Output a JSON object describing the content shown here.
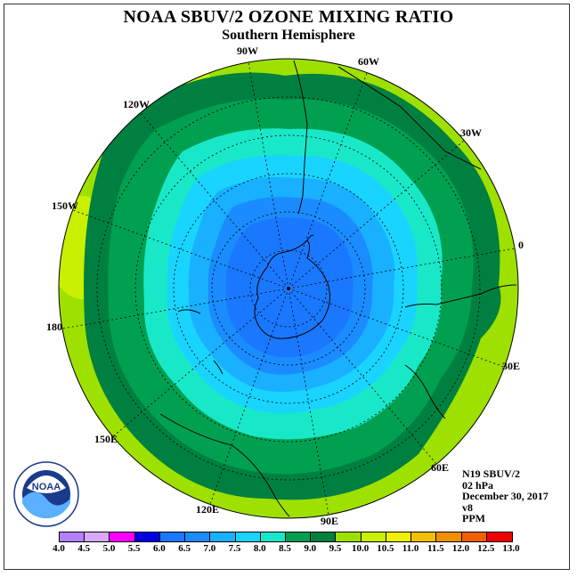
{
  "title": "NOAA SBUV/2 OZONE MIXING RATIO",
  "subtitle": "Southern Hemisphere",
  "longitude_labels": {
    "w90": "90W",
    "w60": "60W",
    "w30": "30W",
    "e0": "0",
    "w120": "120W",
    "w150": "150W",
    "w180": "180",
    "e30": "30E",
    "e60": "60E",
    "e90": "90E",
    "e120": "120E",
    "e150": "150E"
  },
  "info": {
    "satellite": "N19 SBUV/2",
    "level": "02 hPa",
    "date": "December 30, 2017",
    "version": "v8",
    "units": "PPM"
  },
  "logo_text": "NOAA",
  "colorbar": {
    "ticks": [
      "4.0",
      "4.5",
      "5.0",
      "5.5",
      "6.0",
      "6.5",
      "7.0",
      "7.5",
      "8.0",
      "8.5",
      "9.0",
      "9.5",
      "10.0",
      "10.5",
      "11.0",
      "11.5",
      "12.0",
      "12.5",
      "13.0"
    ],
    "colors": [
      "#b480ff",
      "#d8a8ff",
      "#ff00ff",
      "#0000e0",
      "#1a78ff",
      "#1a8cff",
      "#19b0ff",
      "#19d4ff",
      "#19e8c8",
      "#00a050",
      "#008040",
      "#9ee000",
      "#c8f000",
      "#f0f000",
      "#f0c000",
      "#f09000",
      "#f06000",
      "#f00000",
      "#a05028"
    ]
  }
}
